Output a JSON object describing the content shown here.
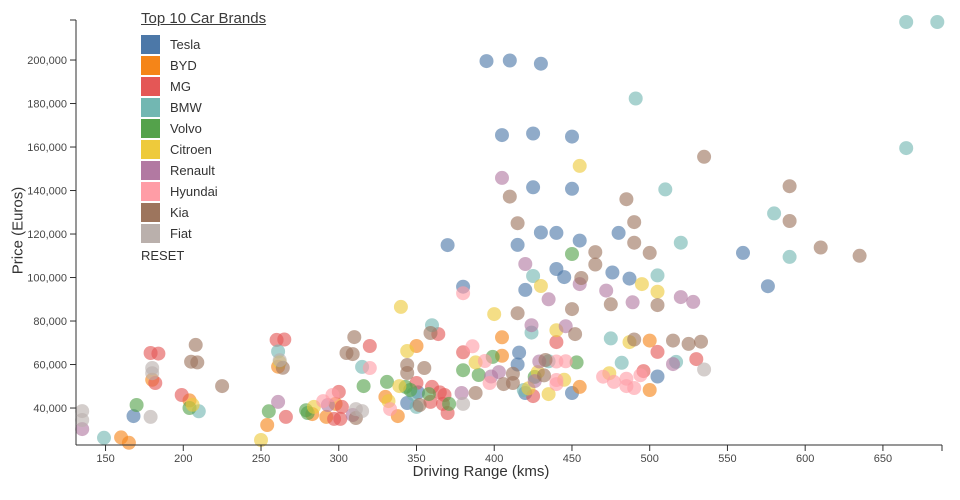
{
  "legend": {
    "title": "Top 10 Car Brands",
    "reset_label": "RESET"
  },
  "axes": {
    "x_title": "Driving Range (kms)",
    "y_title": "Price (Euros)"
  },
  "chart_data": {
    "type": "scatter",
    "title": "Top 10 Car Brands",
    "xlabel": "Driving Range (kms)",
    "ylabel": "Price (Euros)",
    "xlim": [
      131,
      688
    ],
    "ylim": [
      23000,
      223000
    ],
    "x_ticks": [
      150,
      200,
      250,
      300,
      350,
      400,
      450,
      500,
      550,
      600,
      650
    ],
    "y_ticks": [
      40000,
      60000,
      80000,
      100000,
      120000,
      140000,
      160000,
      180000,
      200000
    ],
    "grid": false,
    "legend_position": "top-left-inside",
    "point_radius": 7,
    "point_opacity": 0.62,
    "series": [
      {
        "name": "Tesla",
        "color": "#4c78a8",
        "points": [
          [
            395,
            199500
          ],
          [
            410,
            199800
          ],
          [
            430,
            198300
          ],
          [
            405,
            165500
          ],
          [
            425,
            166200
          ],
          [
            450,
            164800
          ],
          [
            425,
            141500
          ],
          [
            450,
            140800
          ],
          [
            370,
            114900
          ],
          [
            430,
            120700
          ],
          [
            440,
            120500
          ],
          [
            480,
            120500
          ],
          [
            455,
            117000
          ],
          [
            415,
            115000
          ],
          [
            440,
            103900
          ],
          [
            445,
            100200
          ],
          [
            476,
            102300
          ],
          [
            487,
            99500
          ],
          [
            420,
            94300
          ],
          [
            380,
            95800
          ],
          [
            560,
            111300
          ],
          [
            576,
            96000
          ],
          [
            416,
            65500
          ],
          [
            415,
            60000
          ],
          [
            344,
            42300
          ],
          [
            351,
            47200
          ],
          [
            420,
            46900
          ],
          [
            450,
            46900
          ],
          [
            505,
            54500
          ],
          [
            168,
            36300
          ]
        ]
      },
      {
        "name": "BYD",
        "color": "#f58518",
        "points": [
          [
            405,
            72500
          ],
          [
            405,
            64000
          ],
          [
            338,
            36300
          ],
          [
            330,
            45100
          ],
          [
            298,
            41900
          ],
          [
            292,
            35900
          ],
          [
            283,
            37200
          ],
          [
            180,
            53000
          ],
          [
            160,
            26500
          ],
          [
            165,
            24000
          ],
          [
            254,
            32200
          ],
          [
            261,
            59000
          ],
          [
            350,
            68500
          ],
          [
            455,
            49700
          ],
          [
            500,
            71000
          ],
          [
            500,
            48300
          ],
          [
            204,
            43500
          ]
        ]
      },
      {
        "name": "MG",
        "color": "#e45756",
        "points": [
          [
            179,
            65300
          ],
          [
            184,
            65000
          ],
          [
            182,
            51500
          ],
          [
            199,
            46000
          ],
          [
            260,
            71300
          ],
          [
            265,
            71500
          ],
          [
            266,
            35900
          ],
          [
            320,
            68500
          ],
          [
            364,
            74000
          ],
          [
            350,
            51500
          ],
          [
            360,
            49700
          ],
          [
            365,
            47200
          ],
          [
            359,
            42800
          ],
          [
            367,
            41900
          ],
          [
            300,
            47400
          ],
          [
            302,
            40500
          ],
          [
            297,
            35000
          ],
          [
            301,
            35000
          ],
          [
            380,
            65600
          ],
          [
            440,
            70300
          ],
          [
            368,
            46000
          ],
          [
            370,
            37700
          ],
          [
            425,
            45500
          ],
          [
            496,
            57000
          ],
          [
            505,
            65800
          ],
          [
            530,
            62500
          ]
        ]
      },
      {
        "name": "BMW",
        "color": "#72b7b2",
        "points": [
          [
            665,
            217500
          ],
          [
            685,
            217500
          ],
          [
            491,
            182300
          ],
          [
            665,
            159500
          ],
          [
            510,
            140500
          ],
          [
            580,
            129500
          ],
          [
            520,
            116000
          ],
          [
            590,
            109500
          ],
          [
            425,
            100700
          ],
          [
            505,
            101000
          ],
          [
            360,
            78100
          ],
          [
            424,
            74700
          ],
          [
            475,
            72000
          ],
          [
            482,
            60800
          ],
          [
            517,
            61200
          ],
          [
            435,
            61500
          ],
          [
            419,
            48300
          ],
          [
            348,
            46400
          ],
          [
            350,
            40500
          ],
          [
            315,
            58900
          ],
          [
            261,
            66000
          ],
          [
            210,
            38500
          ],
          [
            149,
            26300
          ]
        ]
      },
      {
        "name": "Volvo",
        "color": "#54a24b",
        "points": [
          [
            450,
            110800
          ],
          [
            399,
            63500
          ],
          [
            380,
            57400
          ],
          [
            390,
            55200
          ],
          [
            331,
            52000
          ],
          [
            316,
            50100
          ],
          [
            343,
            49700
          ],
          [
            346,
            48300
          ],
          [
            358,
            46400
          ],
          [
            371,
            41900
          ],
          [
            280,
            37700
          ],
          [
            279,
            39000
          ],
          [
            255,
            38500
          ],
          [
            170,
            41400
          ],
          [
            426,
            54300
          ],
          [
            204,
            40000
          ],
          [
            453,
            61000
          ]
        ]
      },
      {
        "name": "Citroen",
        "color": "#eeca3b",
        "points": [
          [
            455,
            151300
          ],
          [
            430,
            96100
          ],
          [
            495,
            97000
          ],
          [
            505,
            93500
          ],
          [
            400,
            83200
          ],
          [
            340,
            86500
          ],
          [
            440,
            75800
          ],
          [
            487,
            70300
          ],
          [
            344,
            66200
          ],
          [
            332,
            43200
          ],
          [
            339,
            50100
          ],
          [
            284,
            40500
          ],
          [
            250,
            25300
          ],
          [
            206,
            41500
          ],
          [
            262,
            61000
          ],
          [
            435,
            46400
          ],
          [
            445,
            53000
          ],
          [
            422,
            49000
          ],
          [
            388,
            61000
          ],
          [
            428,
            56500
          ],
          [
            474,
            56000
          ]
        ]
      },
      {
        "name": "Renault",
        "color": "#b279a2",
        "points": [
          [
            405,
            145800
          ],
          [
            420,
            106200
          ],
          [
            472,
            94000
          ],
          [
            455,
            97000
          ],
          [
            520,
            91000
          ],
          [
            528,
            88800
          ],
          [
            489,
            88600
          ],
          [
            435,
            90000
          ],
          [
            424,
            78100
          ],
          [
            446,
            77600
          ],
          [
            429,
            61400
          ],
          [
            403,
            56500
          ],
          [
            398,
            54500
          ],
          [
            426,
            52400
          ],
          [
            379,
            46900
          ],
          [
            309,
            36800
          ],
          [
            293,
            41400
          ],
          [
            261,
            42800
          ],
          [
            135,
            30300
          ],
          [
            515,
            60200
          ]
        ]
      },
      {
        "name": "Hyundai",
        "color": "#ff9da6",
        "points": [
          [
            380,
            92800
          ],
          [
            386,
            68400
          ],
          [
            320,
            58400
          ],
          [
            333,
            39500
          ],
          [
            296,
            46000
          ],
          [
            290,
            43200
          ],
          [
            440,
            61400
          ],
          [
            446,
            61500
          ],
          [
            440,
            52900
          ],
          [
            470,
            54400
          ],
          [
            394,
            61600
          ],
          [
            397,
            51500
          ],
          [
            440,
            51000
          ],
          [
            477,
            52000
          ],
          [
            485,
            53500
          ],
          [
            485,
            50100
          ],
          [
            494,
            55100
          ],
          [
            490,
            49200
          ]
        ]
      },
      {
        "name": "Kia",
        "color": "#9d755d",
        "points": [
          [
            410,
            137200
          ],
          [
            485,
            136000
          ],
          [
            535,
            155500
          ],
          [
            590,
            142000
          ],
          [
            590,
            126000
          ],
          [
            610,
            113800
          ],
          [
            635,
            110000
          ],
          [
            490,
            125500
          ],
          [
            415,
            125000
          ],
          [
            500,
            111300
          ],
          [
            465,
            111700
          ],
          [
            465,
            106000
          ],
          [
            490,
            116000
          ],
          [
            456,
            99800
          ],
          [
            475,
            87700
          ],
          [
            505,
            87300
          ],
          [
            450,
            85500
          ],
          [
            415,
            83600
          ],
          [
            452,
            74000
          ],
          [
            433,
            62100
          ],
          [
            412,
            55800
          ],
          [
            432,
            55000
          ],
          [
            344,
            59800
          ],
          [
            344,
            56100
          ],
          [
            355,
            58400
          ],
          [
            352,
            41400
          ],
          [
            311,
            35400
          ],
          [
            310,
            72600
          ],
          [
            305,
            65300
          ],
          [
            309,
            64800
          ],
          [
            359,
            74500
          ],
          [
            388,
            46900
          ],
          [
            406,
            51000
          ],
          [
            412,
            51500
          ],
          [
            208,
            69000
          ],
          [
            205,
            61300
          ],
          [
            209,
            61000
          ],
          [
            225,
            50100
          ],
          [
            264,
            58500
          ],
          [
            515,
            71000
          ],
          [
            525,
            69500
          ],
          [
            533,
            70500
          ],
          [
            490,
            71500
          ]
        ]
      },
      {
        "name": "Fiat",
        "color": "#bab0ac",
        "points": [
          [
            135,
            38600
          ],
          [
            135,
            34500
          ],
          [
            180,
            58400
          ],
          [
            180,
            56000
          ],
          [
            179,
            35900
          ],
          [
            311,
            39500
          ],
          [
            315,
            38600
          ],
          [
            262,
            62000
          ],
          [
            380,
            41900
          ],
          [
            535,
            57700
          ]
        ]
      }
    ]
  }
}
